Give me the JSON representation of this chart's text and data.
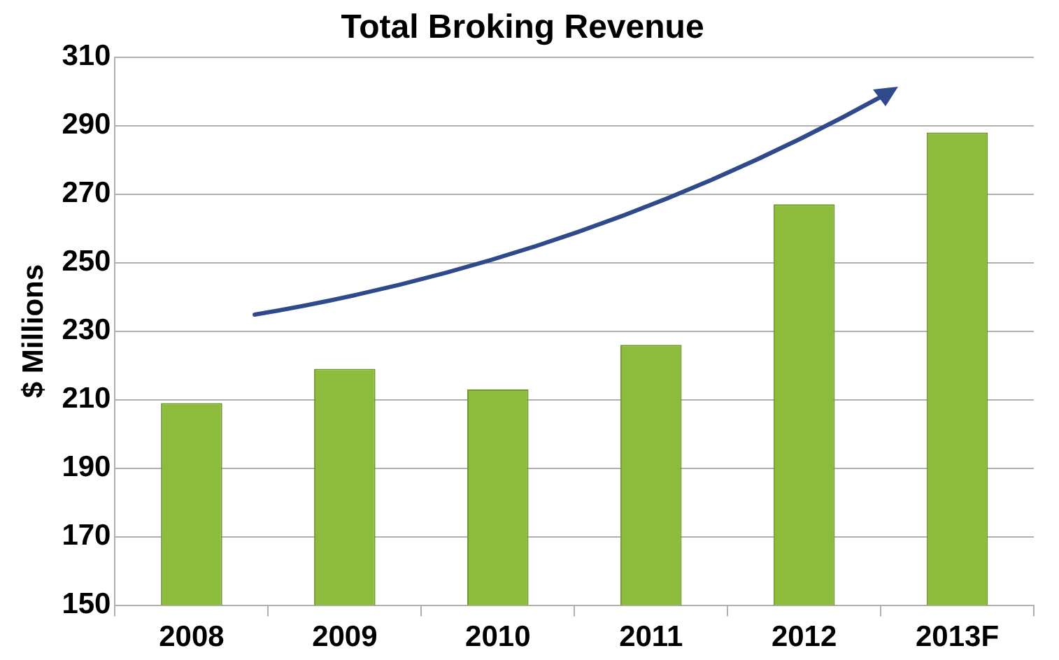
{
  "chart_data": {
    "type": "bar",
    "title": "Total Broking Revenue",
    "ylabel": "$ Millions",
    "categories": [
      "2008",
      "2009",
      "2010",
      "2011",
      "2012",
      "2013F"
    ],
    "values": [
      209,
      219,
      213,
      226,
      267,
      288
    ],
    "color": "#8dbb3c",
    "ylim": [
      150,
      310
    ],
    "yticks": [
      150,
      170,
      190,
      210,
      230,
      250,
      270,
      290,
      310
    ],
    "grid": "y",
    "legend": false
  }
}
